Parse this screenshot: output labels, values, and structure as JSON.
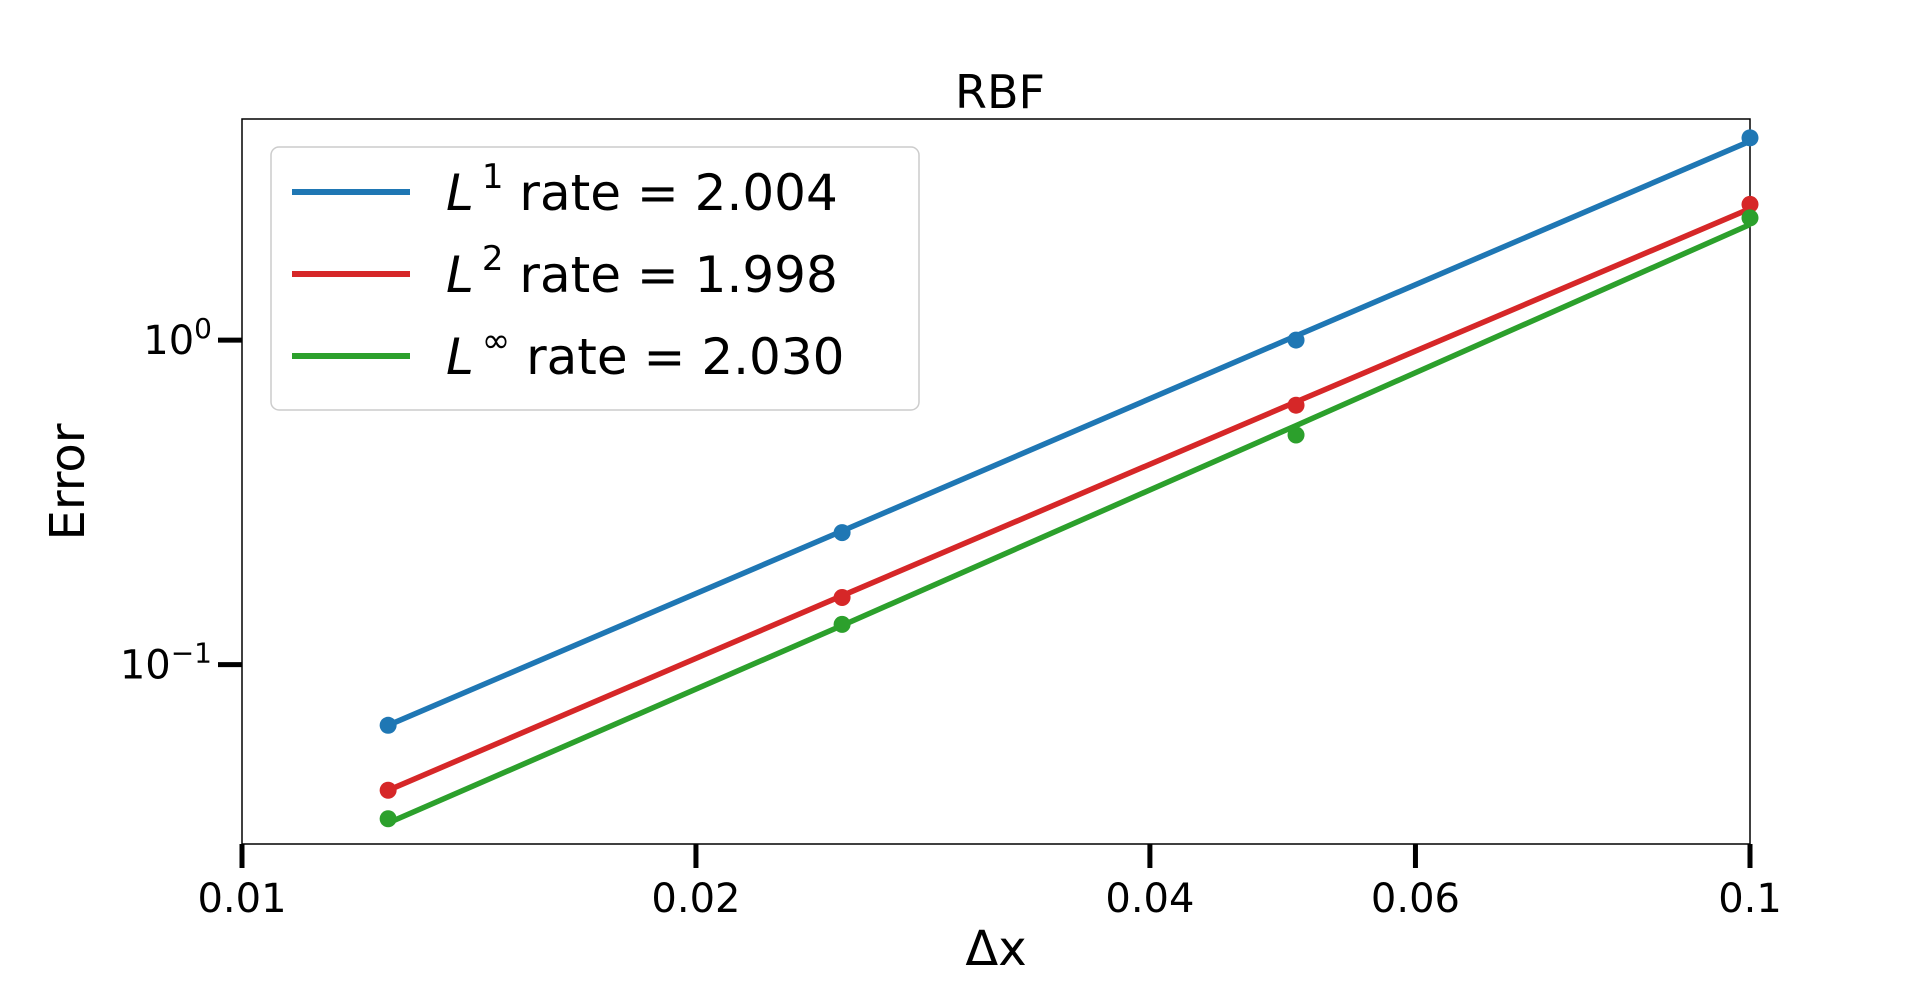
{
  "chart_data": {
    "type": "line",
    "title": "RBF",
    "xlabel": "Δx",
    "ylabel": "Error",
    "xscale": "log",
    "yscale": "log",
    "xlim": [
      0.01,
      0.1
    ],
    "ylim": [
      0.028,
      4.8
    ],
    "grid": false,
    "legend_position": "upper-left",
    "x_ticks": [
      {
        "value": 0.01,
        "label": "0.01"
      },
      {
        "value": 0.02,
        "label": "0.02"
      },
      {
        "value": 0.04,
        "label": "0.04"
      },
      {
        "value": 0.06,
        "label": "0.06"
      },
      {
        "value": 0.1,
        "label": "0.1"
      }
    ],
    "y_ticks": [
      {
        "value": 1,
        "base": "10",
        "exp": "0"
      },
      {
        "value": 0.1,
        "base": "10",
        "exp": "−1"
      }
    ],
    "x": [
      0.0125,
      0.025,
      0.05,
      0.1
    ],
    "series": [
      {
        "name_base": "L",
        "name_sup": "1",
        "name_rest": " rate = 2.004",
        "color": "#1f77b4",
        "values": [
          0.065,
          0.255,
          1.0,
          4.2
        ],
        "fit": [
          0.065,
          0.258,
          1.03,
          4.1
        ]
      },
      {
        "name_base": "L",
        "name_sup": "2",
        "name_rest": " rate = 1.998",
        "color": "#d62728",
        "values": [
          0.041,
          0.161,
          0.63,
          2.62
        ],
        "fit": [
          0.041,
          0.163,
          0.645,
          2.54
        ]
      },
      {
        "name_base": "L",
        "name_sup": "∞",
        "name_rest": " rate = 2.030",
        "color": "#2ca02c",
        "values": [
          0.0335,
          0.133,
          0.51,
          2.38
        ],
        "fit": [
          0.0325,
          0.132,
          0.545,
          2.27
        ]
      }
    ]
  }
}
